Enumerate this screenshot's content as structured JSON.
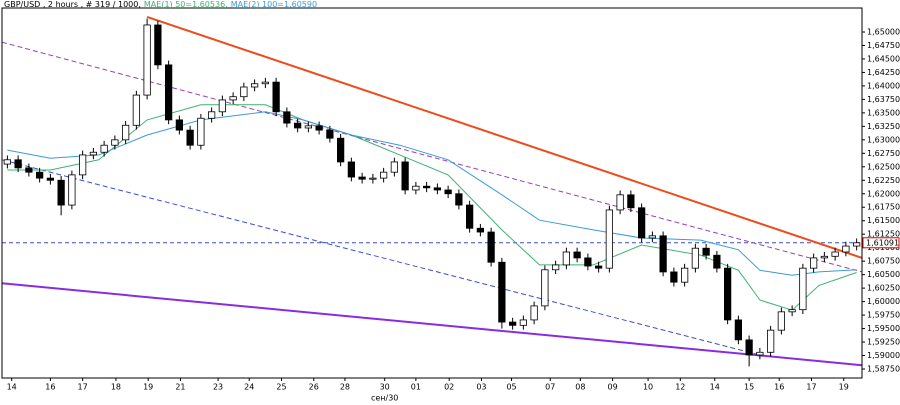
{
  "chart_data": {
    "type": "candlestick",
    "title": "GBP/USD , 2 hours , # 319 / 1000,",
    "xlim": [
      0,
      80
    ],
    "ylim": [
      1.58583,
      1.65445
    ],
    "yticks": [
      {
        "value": 1.5875,
        "label": "1,58750"
      },
      {
        "value": 1.59,
        "label": "1,59000"
      },
      {
        "value": 1.5925,
        "label": "1,59250"
      },
      {
        "value": 1.595,
        "label": "1,59500"
      },
      {
        "value": 1.5975,
        "label": "1,59750"
      },
      {
        "value": 1.6,
        "label": "1,60000"
      },
      {
        "value": 1.6025,
        "label": "1,60250"
      },
      {
        "value": 1.605,
        "label": "1,60500"
      },
      {
        "value": 1.6075,
        "label": "1,60750"
      },
      {
        "value": 1.61,
        "label": "1,61000"
      },
      {
        "value": 1.6125,
        "label": "1,61250"
      },
      {
        "value": 1.615,
        "label": "1,61500"
      },
      {
        "value": 1.6175,
        "label": "1,61750"
      },
      {
        "value": 1.62,
        "label": "1,62000"
      },
      {
        "value": 1.6225,
        "label": "1,62250"
      },
      {
        "value": 1.625,
        "label": "1,62500"
      },
      {
        "value": 1.6275,
        "label": "1,62750"
      },
      {
        "value": 1.63,
        "label": "1,63000"
      },
      {
        "value": 1.6325,
        "label": "1,63250"
      },
      {
        "value": 1.635,
        "label": "1,63500"
      },
      {
        "value": 1.6375,
        "label": "1,63750"
      },
      {
        "value": 1.64,
        "label": "1,64000"
      },
      {
        "value": 1.6425,
        "label": "1,64250"
      },
      {
        "value": 1.645,
        "label": "1,64500"
      },
      {
        "value": 1.6475,
        "label": "1,64750"
      },
      {
        "value": 1.65,
        "label": "1,65000"
      }
    ],
    "xticks": [
      {
        "value": 0.9,
        "label": "14"
      },
      {
        "value": 4.5,
        "label": "16"
      },
      {
        "value": 7.5,
        "label": "17"
      },
      {
        "value": 10.6,
        "label": "18"
      },
      {
        "value": 13.6,
        "label": "19"
      },
      {
        "value": 16.6,
        "label": "21"
      },
      {
        "value": 20.1,
        "label": "23"
      },
      {
        "value": 23.0,
        "label": "24"
      },
      {
        "value": 26.0,
        "label": "25"
      },
      {
        "value": 29.0,
        "label": "26"
      },
      {
        "value": 31.9,
        "label": "28"
      },
      {
        "value": 35.6,
        "label": "30"
      },
      {
        "value": 38.5,
        "label": "01"
      },
      {
        "value": 41.6,
        "label": "02"
      },
      {
        "value": 44.6,
        "label": "03"
      },
      {
        "value": 47.4,
        "label": "05"
      },
      {
        "value": 51.0,
        "label": "07"
      },
      {
        "value": 53.8,
        "label": "08"
      },
      {
        "value": 56.8,
        "label": "09"
      },
      {
        "value": 60.1,
        "label": "10"
      },
      {
        "value": 63.1,
        "label": "12"
      },
      {
        "value": 66.3,
        "label": "14"
      },
      {
        "value": 69.5,
        "label": "15"
      },
      {
        "value": 72.3,
        "label": "16"
      },
      {
        "value": 75.3,
        "label": "17"
      },
      {
        "value": 78.3,
        "label": "19"
      }
    ],
    "x_sublabel": {
      "value": 35.6,
      "label": "сен/30"
    },
    "up_color": "#ffffff",
    "down_color": "#000000",
    "candles": [
      [
        1.6255,
        1.6271,
        1.6247,
        1.6263
      ],
      [
        1.6263,
        1.6271,
        1.624,
        1.6248
      ],
      [
        1.6248,
        1.6256,
        1.6232,
        1.624
      ],
      [
        1.624,
        1.6248,
        1.6221,
        1.6229
      ],
      [
        1.6229,
        1.6237,
        1.6217,
        1.6225
      ],
      [
        1.6225,
        1.6233,
        1.616,
        1.6179
      ],
      [
        1.6179,
        1.6243,
        1.6171,
        1.6235
      ],
      [
        1.6235,
        1.628,
        1.6227,
        1.6272
      ],
      [
        1.6272,
        1.6285,
        1.6264,
        1.6277
      ],
      [
        1.6277,
        1.6298,
        1.6269,
        1.629
      ],
      [
        1.629,
        1.6308,
        1.6282,
        1.63
      ],
      [
        1.63,
        1.6335,
        1.6292,
        1.6327
      ],
      [
        1.6327,
        1.6391,
        1.6319,
        1.6383
      ],
      [
        1.6383,
        1.6525,
        1.6375,
        1.6513
      ],
      [
        1.6513,
        1.6521,
        1.6431,
        1.6439
      ],
      [
        1.6439,
        1.6447,
        1.6329,
        1.6337
      ],
      [
        1.6337,
        1.6345,
        1.631,
        1.6318
      ],
      [
        1.6318,
        1.6326,
        1.6282,
        1.629
      ],
      [
        1.629,
        1.6348,
        1.6282,
        1.634
      ],
      [
        1.634,
        1.636,
        1.6332,
        1.6352
      ],
      [
        1.6352,
        1.6382,
        1.6344,
        1.6374
      ],
      [
        1.6374,
        1.6388,
        1.6366,
        1.638
      ],
      [
        1.638,
        1.6406,
        1.6372,
        1.6398
      ],
      [
        1.6398,
        1.6412,
        1.639,
        1.6404
      ],
      [
        1.6404,
        1.6415,
        1.6396,
        1.6407
      ],
      [
        1.6407,
        1.6415,
        1.6344,
        1.6352
      ],
      [
        1.6352,
        1.636,
        1.6323,
        1.6331
      ],
      [
        1.6331,
        1.6339,
        1.6314,
        1.6322
      ],
      [
        1.6322,
        1.6334,
        1.6314,
        1.6326
      ],
      [
        1.6326,
        1.6334,
        1.631,
        1.6318
      ],
      [
        1.6318,
        1.6326,
        1.6295,
        1.6303
      ],
      [
        1.6303,
        1.6311,
        1.6251,
        1.6259
      ],
      [
        1.6259,
        1.6267,
        1.6223,
        1.6231
      ],
      [
        1.6231,
        1.6239,
        1.6219,
        1.6227
      ],
      [
        1.6227,
        1.6237,
        1.6219,
        1.6229
      ],
      [
        1.6229,
        1.6248,
        1.6221,
        1.624
      ],
      [
        1.624,
        1.6267,
        1.6232,
        1.6259
      ],
      [
        1.6259,
        1.6267,
        1.6199,
        1.6207
      ],
      [
        1.6207,
        1.6222,
        1.6199,
        1.6214
      ],
      [
        1.6214,
        1.6222,
        1.6203,
        1.6211
      ],
      [
        1.6211,
        1.6219,
        1.6199,
        1.6207
      ],
      [
        1.6207,
        1.6215,
        1.6192,
        1.62
      ],
      [
        1.62,
        1.6208,
        1.6171,
        1.6179
      ],
      [
        1.6179,
        1.6187,
        1.6128,
        1.6136
      ],
      [
        1.6136,
        1.6144,
        1.6121,
        1.6129
      ],
      [
        1.6129,
        1.6137,
        1.6065,
        1.6073
      ],
      [
        1.6073,
        1.6081,
        1.595,
        1.5962
      ],
      [
        1.5962,
        1.597,
        1.5948,
        1.5956
      ],
      [
        1.5956,
        1.5974,
        1.5948,
        1.5966
      ],
      [
        1.5966,
        1.6,
        1.5958,
        1.5992
      ],
      [
        1.5992,
        1.6067,
        1.5984,
        1.6059
      ],
      [
        1.6059,
        1.6076,
        1.6051,
        1.6068
      ],
      [
        1.6068,
        1.61,
        1.606,
        1.6092
      ],
      [
        1.6092,
        1.61,
        1.6073,
        1.6081
      ],
      [
        1.6081,
        1.6089,
        1.6058,
        1.6066
      ],
      [
        1.6066,
        1.6074,
        1.6054,
        1.6062
      ],
      [
        1.6062,
        1.6178,
        1.6054,
        1.617
      ],
      [
        1.617,
        1.6206,
        1.6162,
        1.6198
      ],
      [
        1.6198,
        1.6206,
        1.6166,
        1.6174
      ],
      [
        1.6174,
        1.6182,
        1.611,
        1.6118
      ],
      [
        1.6118,
        1.613,
        1.611,
        1.6122
      ],
      [
        1.6122,
        1.613,
        1.6047,
        1.6055
      ],
      [
        1.6055,
        1.6063,
        1.6028,
        1.6036
      ],
      [
        1.6036,
        1.607,
        1.6028,
        1.6062
      ],
      [
        1.6062,
        1.6107,
        1.6054,
        1.6099
      ],
      [
        1.6099,
        1.6107,
        1.6078,
        1.6086
      ],
      [
        1.6086,
        1.6094,
        1.6054,
        1.6062
      ],
      [
        1.6062,
        1.607,
        1.5958,
        1.5966
      ],
      [
        1.5966,
        1.5974,
        1.5921,
        1.5929
      ],
      [
        1.5929,
        1.5937,
        1.588,
        1.5901
      ],
      [
        1.5901,
        1.5914,
        1.5893,
        1.5906
      ],
      [
        1.5906,
        1.5955,
        1.5898,
        1.5947
      ],
      [
        1.5947,
        1.5989,
        1.5939,
        1.5981
      ],
      [
        1.5981,
        1.5993,
        1.5973,
        1.5985
      ],
      [
        1.5985,
        1.607,
        1.5977,
        1.6062
      ],
      [
        1.6062,
        1.6089,
        1.6054,
        1.6081
      ],
      [
        1.6081,
        1.6092,
        1.6073,
        1.6084
      ],
      [
        1.6084,
        1.61,
        1.6076,
        1.6092
      ],
      [
        1.6092,
        1.6111,
        1.6084,
        1.6103
      ],
      [
        1.6103,
        1.6117,
        1.6095,
        1.6109
      ]
    ],
    "series": [
      {
        "name": "MAE(1) 50=1,60536,",
        "color": "#3cb371",
        "x": [
          0.5,
          4.5,
          9,
          13.5,
          18.5,
          24.5,
          28,
          32.5,
          37,
          41.5,
          46.5,
          50,
          55,
          59.5,
          65,
          68.5,
          70.5,
          73.5,
          76,
          79.5
        ],
        "values": [
          1.6244,
          1.6244,
          1.6263,
          1.6337,
          1.6365,
          1.6365,
          1.6337,
          1.6309,
          1.6272,
          1.6235,
          1.6133,
          1.6068,
          1.6068,
          1.6105,
          1.6086,
          1.6058,
          1.6003,
          1.5984,
          1.603,
          1.6054
        ]
      },
      {
        "name": "MAE(2) 100=1,60590",
        "color": "#3a9bd5",
        "x": [
          0.5,
          4.5,
          9,
          13.5,
          18.5,
          24.5,
          28,
          32.5,
          37,
          41.5,
          46.5,
          50,
          55,
          59.5,
          65,
          68.5,
          70.5,
          73.5,
          76,
          79.5
        ],
        "values": [
          1.6281,
          1.6266,
          1.6272,
          1.6309,
          1.6337,
          1.6352,
          1.6337,
          1.6309,
          1.629,
          1.6263,
          1.6198,
          1.6151,
          1.6133,
          1.6118,
          1.6114,
          1.6096,
          1.6058,
          1.6049,
          1.6055,
          1.6059
        ]
      }
    ],
    "trendlines": [
      {
        "color": "#f04a1a",
        "dashed": false,
        "x": [
          13.5,
          80
        ],
        "values": [
          1.6528,
          1.6081
        ]
      },
      {
        "color": "#9b3fb5",
        "dashed": true,
        "x": [
          0,
          80
        ],
        "values": [
          1.6481,
          1.6055
        ]
      },
      {
        "color": "#3a4fd8",
        "dashed": true,
        "x": [
          0,
          70.5
        ],
        "values": [
          1.6263,
          1.5901
        ]
      },
      {
        "color": "#8a2be2",
        "dashed": false,
        "x": [
          0,
          80
        ],
        "values": [
          1.6034,
          1.5882
        ]
      }
    ],
    "price_line": {
      "value": 1.61091,
      "label": "1,61091",
      "color": "#3a4fd8"
    }
  }
}
